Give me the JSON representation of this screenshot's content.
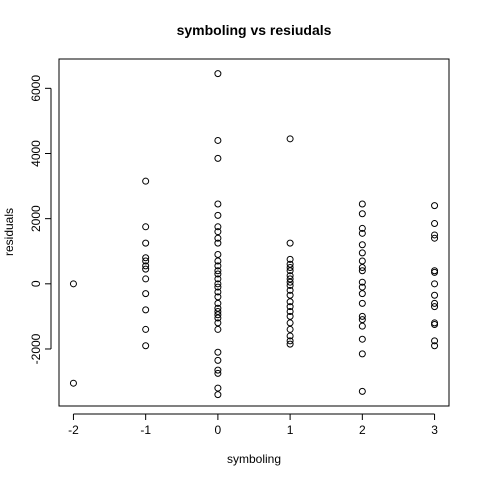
{
  "chart_data": {
    "type": "scatter",
    "title": "symboling  vs resiudals",
    "xlabel": "symboling",
    "ylabel": "residuals",
    "xlim": [
      -2.2,
      3.2
    ],
    "ylim": [
      -3750,
      6900
    ],
    "x_ticks": [
      -2,
      -1,
      0,
      1,
      2,
      3
    ],
    "y_ticks": [
      -2000,
      0,
      2000,
      4000,
      6000
    ],
    "grid": false,
    "marker": "open-circle",
    "points": [
      {
        "x": -2,
        "y": 0
      },
      {
        "x": -2,
        "y": -3050
      },
      {
        "x": -1,
        "y": 3150
      },
      {
        "x": -1,
        "y": 1750
      },
      {
        "x": -1,
        "y": 1250
      },
      {
        "x": -1,
        "y": 800
      },
      {
        "x": -1,
        "y": 700
      },
      {
        "x": -1,
        "y": 550
      },
      {
        "x": -1,
        "y": 450
      },
      {
        "x": -1,
        "y": 150
      },
      {
        "x": -1,
        "y": -300
      },
      {
        "x": -1,
        "y": -800
      },
      {
        "x": -1,
        "y": -1400
      },
      {
        "x": -1,
        "y": -1900
      },
      {
        "x": 0,
        "y": 6450
      },
      {
        "x": 0,
        "y": 4400
      },
      {
        "x": 0,
        "y": 3850
      },
      {
        "x": 0,
        "y": 2450
      },
      {
        "x": 0,
        "y": 2100
      },
      {
        "x": 0,
        "y": 1750
      },
      {
        "x": 0,
        "y": 1600
      },
      {
        "x": 0,
        "y": 1400
      },
      {
        "x": 0,
        "y": 1250
      },
      {
        "x": 0,
        "y": 900
      },
      {
        "x": 0,
        "y": 700
      },
      {
        "x": 0,
        "y": 550
      },
      {
        "x": 0,
        "y": 400
      },
      {
        "x": 0,
        "y": 300
      },
      {
        "x": 0,
        "y": 150
      },
      {
        "x": 0,
        "y": 0
      },
      {
        "x": 0,
        "y": -100
      },
      {
        "x": 0,
        "y": -250
      },
      {
        "x": 0,
        "y": -400
      },
      {
        "x": 0,
        "y": -600
      },
      {
        "x": 0,
        "y": -750
      },
      {
        "x": 0,
        "y": -850
      },
      {
        "x": 0,
        "y": -950
      },
      {
        "x": 0,
        "y": -1050
      },
      {
        "x": 0,
        "y": -1200
      },
      {
        "x": 0,
        "y": -1400
      },
      {
        "x": 0,
        "y": -2100
      },
      {
        "x": 0,
        "y": -2350
      },
      {
        "x": 0,
        "y": -2650
      },
      {
        "x": 0,
        "y": -2750
      },
      {
        "x": 0,
        "y": -3200
      },
      {
        "x": 0,
        "y": -3400
      },
      {
        "x": 1,
        "y": 4450
      },
      {
        "x": 1,
        "y": 1250
      },
      {
        "x": 1,
        "y": 750
      },
      {
        "x": 1,
        "y": 600
      },
      {
        "x": 1,
        "y": 500
      },
      {
        "x": 1,
        "y": 400
      },
      {
        "x": 1,
        "y": 250
      },
      {
        "x": 1,
        "y": 150
      },
      {
        "x": 1,
        "y": 50
      },
      {
        "x": 1,
        "y": -50
      },
      {
        "x": 1,
        "y": -200
      },
      {
        "x": 1,
        "y": -350
      },
      {
        "x": 1,
        "y": -550
      },
      {
        "x": 1,
        "y": -700
      },
      {
        "x": 1,
        "y": -850
      },
      {
        "x": 1,
        "y": -1000
      },
      {
        "x": 1,
        "y": -1200
      },
      {
        "x": 1,
        "y": -1400
      },
      {
        "x": 1,
        "y": -1600
      },
      {
        "x": 1,
        "y": -1750
      },
      {
        "x": 1,
        "y": -1850
      },
      {
        "x": 2,
        "y": 2450
      },
      {
        "x": 2,
        "y": 2150
      },
      {
        "x": 2,
        "y": 1700
      },
      {
        "x": 2,
        "y": 1550
      },
      {
        "x": 2,
        "y": 1200
      },
      {
        "x": 2,
        "y": 950
      },
      {
        "x": 2,
        "y": 700
      },
      {
        "x": 2,
        "y": 500
      },
      {
        "x": 2,
        "y": 400
      },
      {
        "x": 2,
        "y": 50
      },
      {
        "x": 2,
        "y": -100
      },
      {
        "x": 2,
        "y": -300
      },
      {
        "x": 2,
        "y": -600
      },
      {
        "x": 2,
        "y": -1000
      },
      {
        "x": 2,
        "y": -1100
      },
      {
        "x": 2,
        "y": -1300
      },
      {
        "x": 2,
        "y": -1700
      },
      {
        "x": 2,
        "y": -2150
      },
      {
        "x": 2,
        "y": -3300
      },
      {
        "x": 3,
        "y": 2400
      },
      {
        "x": 3,
        "y": 1850
      },
      {
        "x": 3,
        "y": 1500
      },
      {
        "x": 3,
        "y": 1400
      },
      {
        "x": 3,
        "y": 400
      },
      {
        "x": 3,
        "y": 350
      },
      {
        "x": 3,
        "y": 0
      },
      {
        "x": 3,
        "y": -350
      },
      {
        "x": 3,
        "y": -600
      },
      {
        "x": 3,
        "y": -700
      },
      {
        "x": 3,
        "y": -1200
      },
      {
        "x": 3,
        "y": -1250
      },
      {
        "x": 3,
        "y": -1750
      },
      {
        "x": 3,
        "y": -1900
      }
    ]
  }
}
